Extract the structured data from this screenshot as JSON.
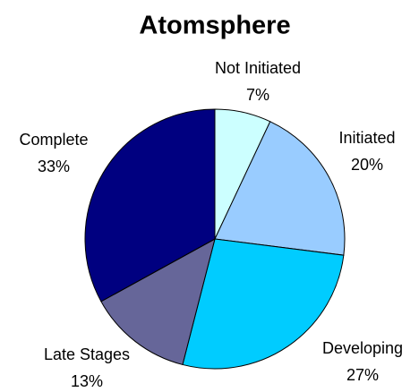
{
  "chart_data": {
    "type": "pie",
    "title": "Atomsphere",
    "categories": [
      "Not Initiated",
      "Initiated",
      "Developing",
      "Late Stages",
      "Complete"
    ],
    "values": [
      7,
      20,
      27,
      13,
      33
    ],
    "value_labels": [
      "7%",
      "20%",
      "27%",
      "13%",
      "33%"
    ],
    "colors": [
      "#ccffff",
      "#99ccff",
      "#00ccff",
      "#666699",
      "#000080"
    ]
  }
}
